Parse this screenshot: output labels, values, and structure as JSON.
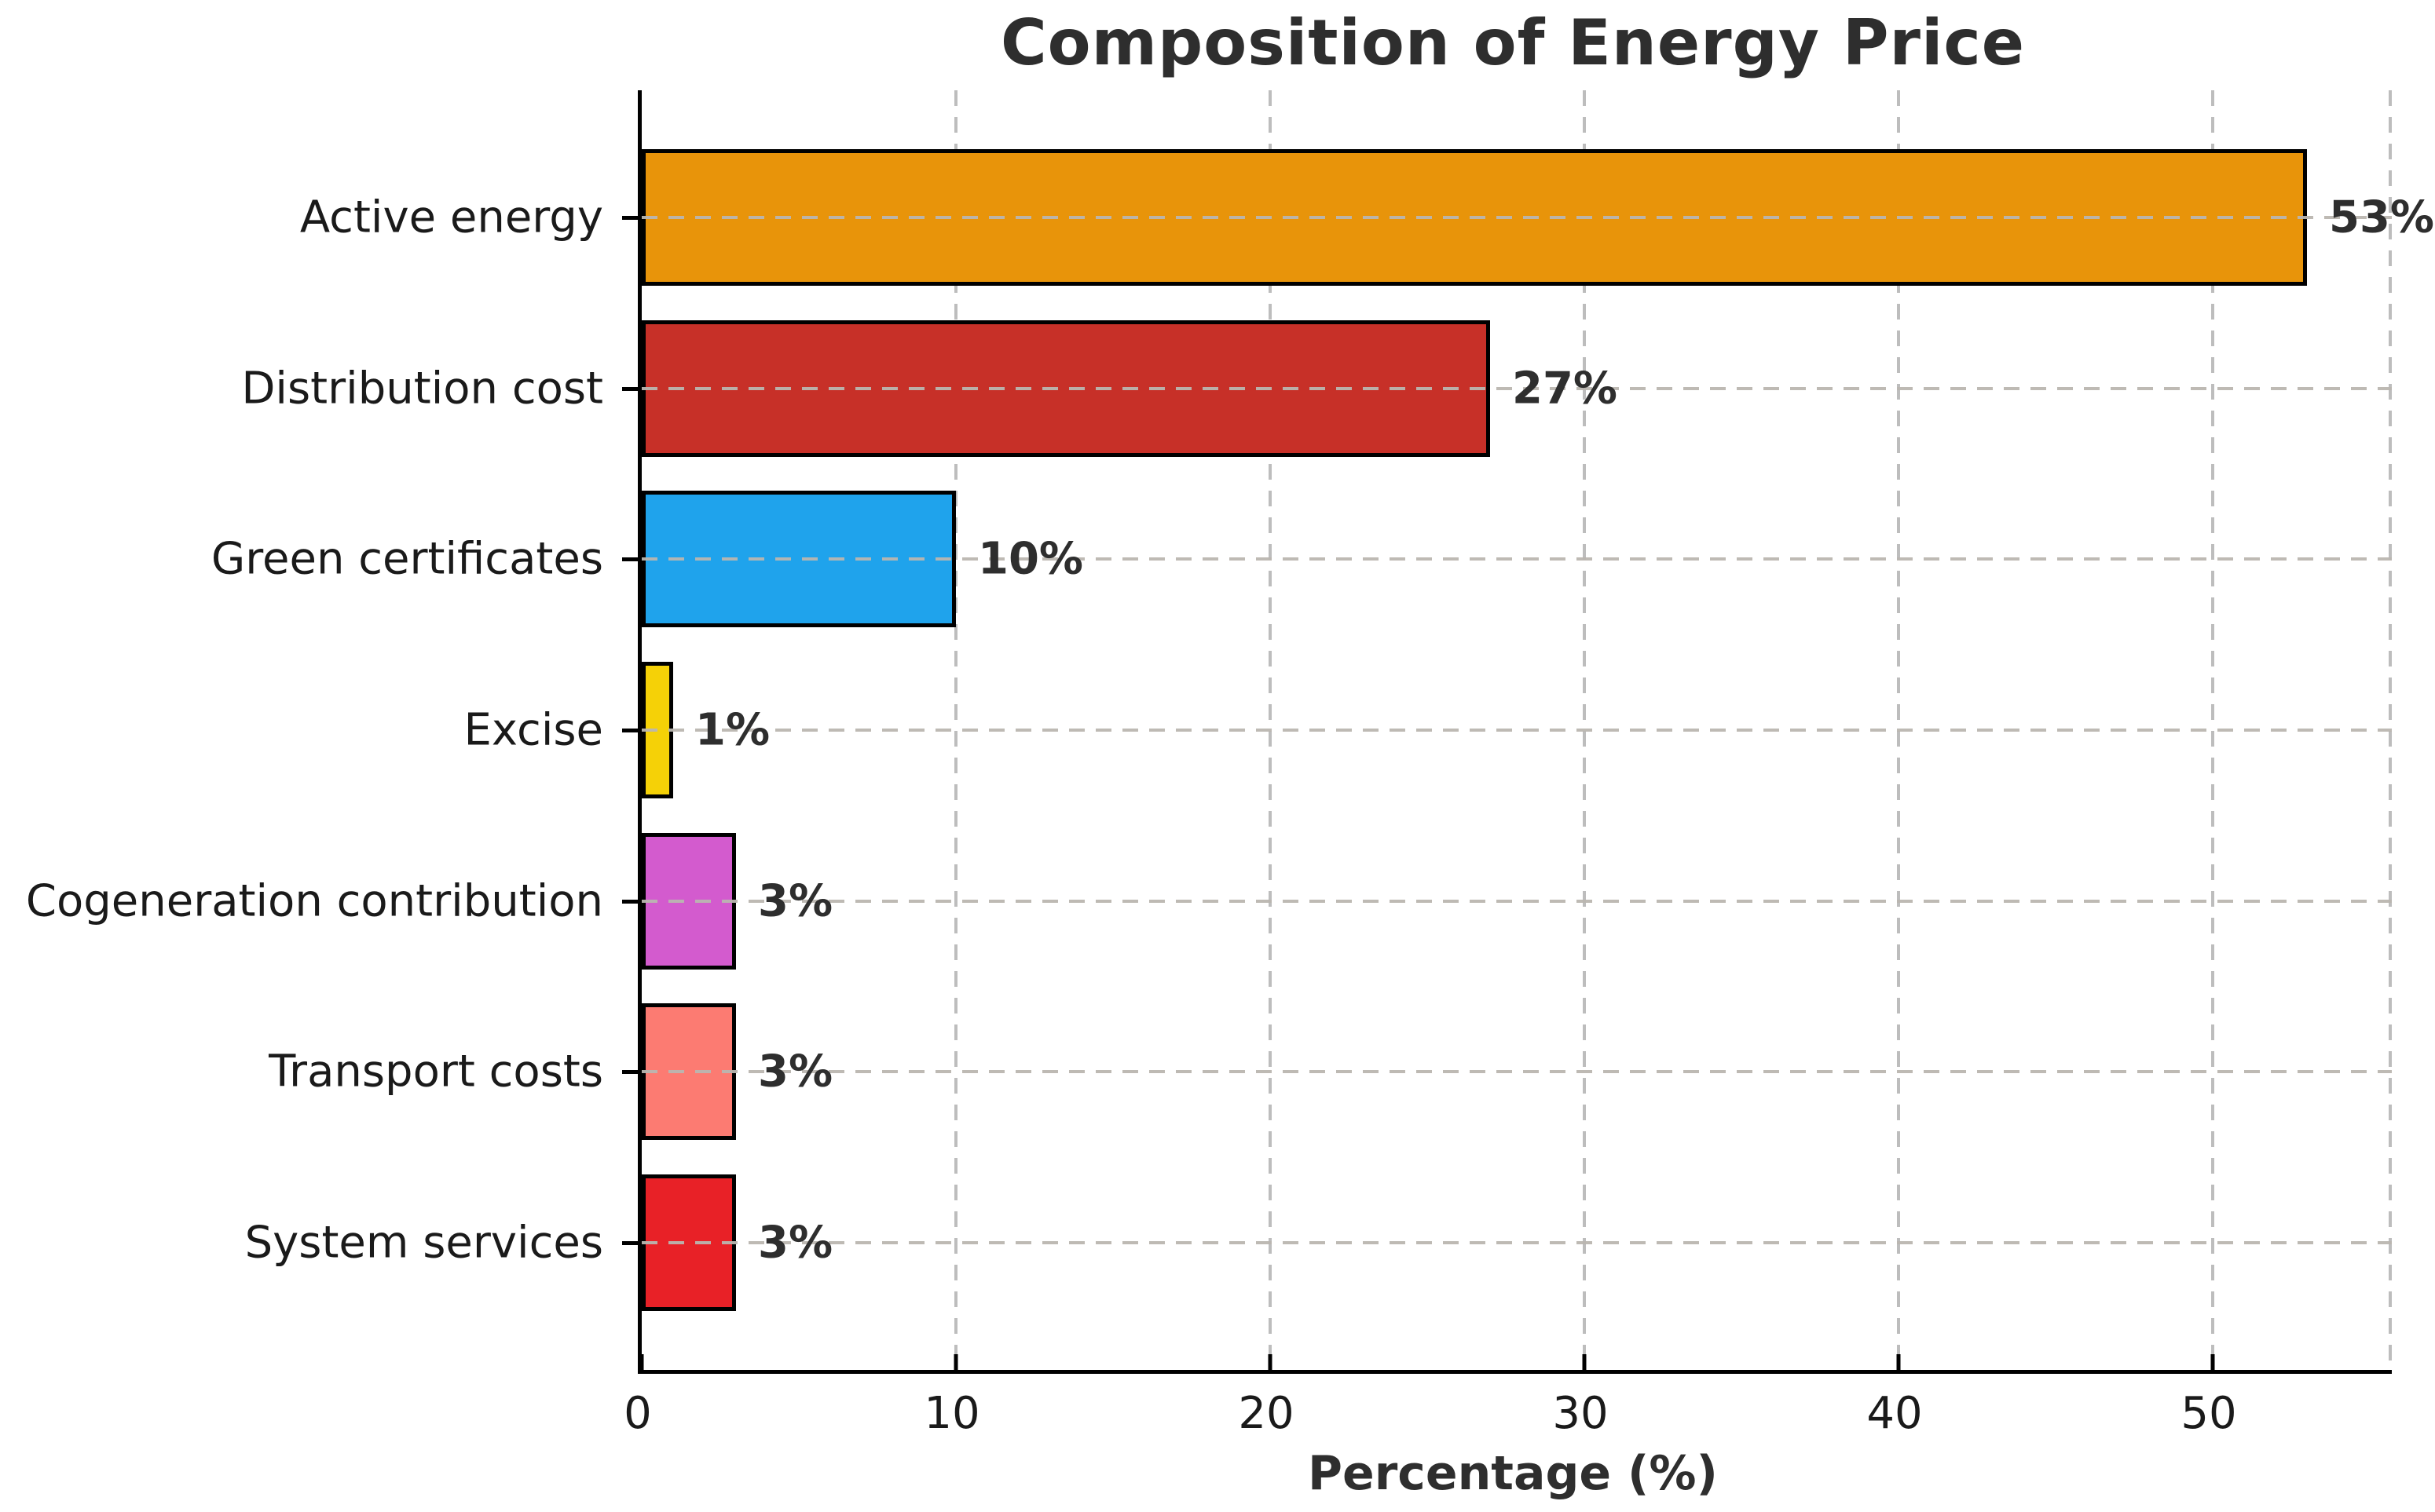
{
  "title": "Composition of Energy Price",
  "xlabel": "Percentage (%)",
  "chart_data": {
    "type": "bar",
    "orientation": "horizontal",
    "title": "Composition of Energy Price",
    "xlabel": "Percentage (%)",
    "ylabel": "",
    "categories": [
      "Active energy",
      "Distribution cost",
      "Green certificates",
      "Excise",
      "Cogeneration contribution",
      "Transport costs",
      "System services"
    ],
    "values": [
      53,
      27,
      10,
      1,
      3,
      3,
      3
    ],
    "value_labels": [
      "53%",
      "27%",
      "10%",
      "1%",
      "3%",
      "3%",
      "3%"
    ],
    "bar_colors": [
      "#E8940A",
      "#C73028",
      "#1FA3EC",
      "#F5D107",
      "#D35BCE",
      "#FC7B72",
      "#E82127"
    ],
    "bar_edge_color": "#000000",
    "x_ticks": [
      0,
      10,
      20,
      30,
      40,
      50
    ],
    "x_tick_labels": [
      "0",
      "10",
      "20",
      "30",
      "40",
      "50"
    ],
    "xlim": [
      0,
      55.7
    ],
    "grid": "dashed",
    "grid_color": "#BDBDBD",
    "legend_position": "none",
    "title_color": "#2E2E2E",
    "text_color": "#1A1A1A"
  }
}
